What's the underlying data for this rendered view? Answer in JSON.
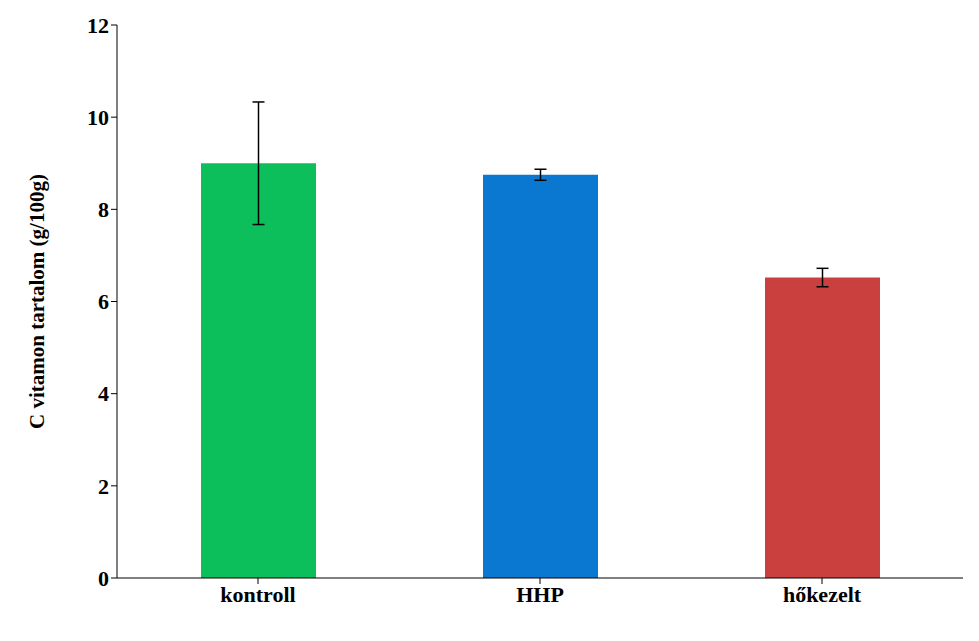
{
  "chart_data": {
    "type": "bar",
    "y_label": "C vitamon tartalom (g/100g)",
    "categories": [
      "kontroll",
      "HHP",
      "hőkezelt"
    ],
    "values": [
      9.0,
      8.75,
      6.52
    ],
    "errors": [
      1.33,
      0.12,
      0.2
    ],
    "colors": [
      "#0dbf5a",
      "#0a78d0",
      "#c9403f"
    ],
    "ylim": [
      0,
      12
    ],
    "yticks": [
      0,
      2,
      4,
      6,
      8,
      10,
      12
    ],
    "grid": false
  }
}
